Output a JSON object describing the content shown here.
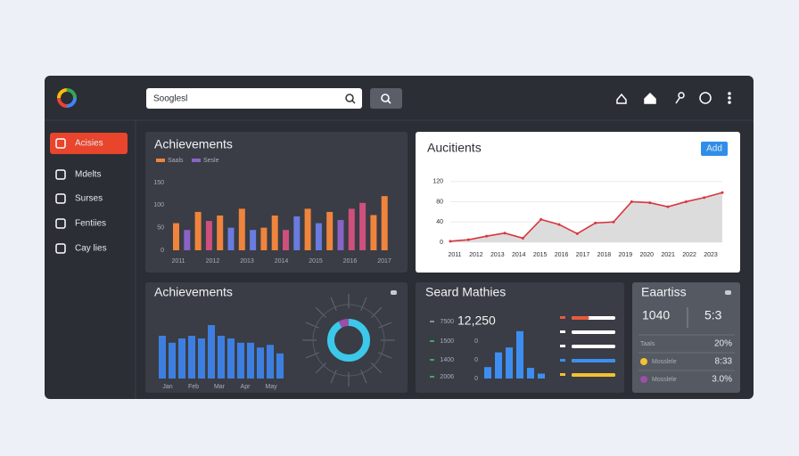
{
  "header": {
    "search_placeholder": "Sooglesl"
  },
  "sidebar": {
    "items": [
      "Acisies",
      "Mdelts",
      "Surses",
      "Fentiies",
      "Cay lies"
    ]
  },
  "panels": [
    {
      "title": "Achievements",
      "legend": [
        {
          "name": "Saals",
          "color": "#f0843c"
        },
        {
          "name": "Sesle",
          "color": "#8a63c7"
        }
      ],
      "ylim": [
        0,
        150
      ],
      "yticks": [
        0,
        50,
        100,
        150
      ],
      "xlabels": [
        "2011",
        "2012",
        "2013",
        "2014",
        "2015",
        "2016",
        "2017"
      ],
      "values": [
        60,
        45,
        85,
        65,
        77,
        50,
        92,
        45,
        50,
        77,
        45,
        75,
        92,
        60,
        85,
        67,
        92,
        105,
        78,
        120
      ],
      "colors": [
        "#f0843c",
        "#8a63c7",
        "#f0843c",
        "#cf4f7d",
        "#f0843c",
        "#6a7ce0",
        "#f0843c",
        "#6a7ce0",
        "#f0843c",
        "#f0843c",
        "#cf4f7d",
        "#6a7ce0",
        "#f0843c",
        "#6a7ce0",
        "#f0843c",
        "#8a63c7",
        "#cf4f7d",
        "#cf4f7d",
        "#f0843c",
        "#f0843c"
      ]
    },
    {
      "title": "Aucitients",
      "button": "Add",
      "ylim": [
        0,
        130
      ],
      "yticks": [
        0,
        40,
        80,
        120
      ],
      "xlabels": [
        "2011",
        "2012",
        "2013",
        "2014",
        "2015",
        "2016",
        "2017",
        "2018",
        "2019",
        "2020",
        "2021",
        "2022",
        "2023"
      ],
      "values": [
        2,
        5,
        12,
        18,
        8,
        45,
        35,
        17,
        38,
        40,
        80,
        78,
        70,
        80,
        88,
        98
      ],
      "color": "#d9363e"
    },
    {
      "title": "Achievements",
      "ylim": [
        0,
        100
      ],
      "xlabels": [
        "Jan",
        "Feb",
        "Mar",
        "Apr",
        "May"
      ],
      "values": [
        80,
        67,
        75,
        80,
        75,
        100,
        80,
        75,
        67,
        67,
        58,
        63,
        47
      ],
      "color": "#3d7fe0",
      "donut": [
        92,
        8
      ],
      "donut_colors": [
        "#3cc8ea",
        "#9b4fa8"
      ]
    },
    {
      "title": "Seard Mathies",
      "total": "12,250",
      "side_labels": [
        "7500",
        "1500",
        "1400",
        "2006"
      ],
      "hist_ticks": [
        "0",
        "0",
        "0"
      ],
      "hist_ylim": [
        0,
        60
      ],
      "hist": [
        14,
        32,
        38,
        58,
        13,
        6
      ],
      "hist_color": "#3d8ef0",
      "meter_values": [
        40,
        100,
        100,
        100,
        100
      ],
      "meter_colors": [
        "#e85a3c",
        "#ffffff",
        "#ffffff",
        "#3d8ef0",
        "#f2c230"
      ]
    },
    {
      "title": "Eaartiss",
      "stats": [
        "1040",
        "5:3"
      ],
      "rows": [
        {
          "label": "Taals",
          "value": "20%"
        },
        {
          "label": "Mosslele",
          "value": "8:33"
        },
        {
          "label": "Mosslele",
          "value": "3.0%"
        }
      ]
    }
  ]
}
